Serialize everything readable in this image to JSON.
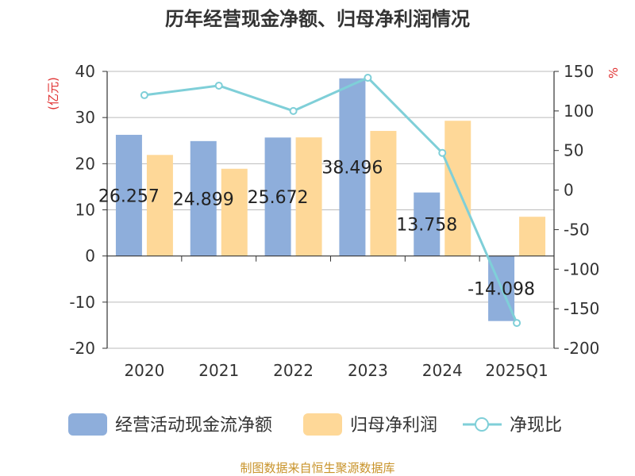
{
  "chart_data": {
    "type": "bar",
    "title": "历年经营现金净额、归母净利润情况",
    "categories": [
      "2020",
      "2021",
      "2022",
      "2023",
      "2024",
      "2025Q1"
    ],
    "series": [
      {
        "name": "经营活动现金流净额",
        "axis": "left",
        "kind": "bar",
        "color": "#8eaedb",
        "values": [
          26.257,
          24.899,
          25.672,
          38.496,
          13.758,
          -14.098
        ],
        "labels": [
          "26.257",
          "24.899",
          "25.672",
          "38.496",
          "13.758",
          "-14.098"
        ]
      },
      {
        "name": "归母净利润",
        "axis": "left",
        "kind": "bar",
        "color": "#fed898",
        "values": [
          21.9,
          18.9,
          25.7,
          27.1,
          29.3,
          8.5
        ]
      },
      {
        "name": "净现比",
        "axis": "right",
        "kind": "line",
        "color": "#7fcfd8",
        "values": [
          120,
          132,
          100,
          142,
          47,
          -168
        ]
      }
    ],
    "left_axis": {
      "unit_label": "(亿元)",
      "ylim": [
        -20,
        40
      ],
      "ticks": [
        40,
        30,
        20,
        10,
        0,
        -10,
        -20
      ]
    },
    "right_axis": {
      "unit_label": "%",
      "ylim": [
        -200,
        150
      ],
      "ticks": [
        150,
        100,
        50,
        0,
        -50,
        -100,
        -150,
        -200
      ]
    },
    "grid": true,
    "legend": "bottom",
    "unit_color": "#e03030",
    "source": "制图数据来自恒生聚源数据库",
    "source_color": "#c8932a"
  }
}
